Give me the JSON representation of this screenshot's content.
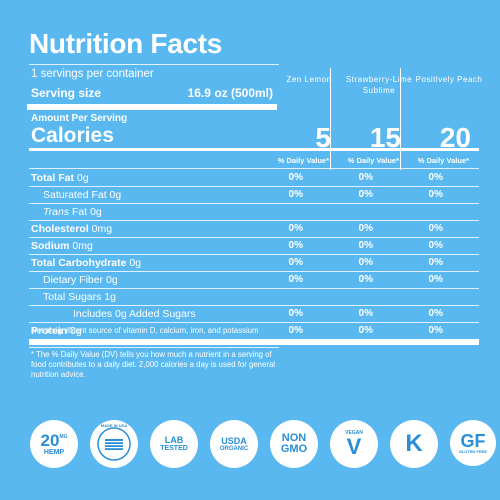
{
  "title": "Nutrition Facts",
  "servings_per_container": "1 servings per container",
  "serving_size_label": "Serving size",
  "serving_size_value": "16.9 oz (500ml)",
  "amount_per_serving": "Amount Per Serving",
  "calories_label": "Calories",
  "flavors": [
    {
      "name": "Zen Lemon",
      "calories": "5"
    },
    {
      "name": "Strawberry-Lime Sublime",
      "calories": "15"
    },
    {
      "name": "Positively Peach",
      "calories": "20"
    }
  ],
  "dv_header": "% Daily Value*",
  "rows": [
    {
      "label_bold": "Total Fat",
      "label": " 0g",
      "indent": 0,
      "values": [
        "0%",
        "0%",
        "0%"
      ]
    },
    {
      "label_bold": "",
      "label": "Saturated Fat 0g",
      "indent": 1,
      "values": [
        "0%",
        "0%",
        "0%"
      ]
    },
    {
      "label_bold": "",
      "label_italic": "Trans",
      "label": " Fat 0g",
      "indent": 1,
      "values": [
        "",
        "",
        ""
      ]
    },
    {
      "label_bold": "Cholesterol",
      "label": " 0mg",
      "indent": 0,
      "values": [
        "0%",
        "0%",
        "0%"
      ]
    },
    {
      "label_bold": "Sodium",
      "label": " 0mg",
      "indent": 0,
      "values": [
        "0%",
        "0%",
        "0%"
      ]
    },
    {
      "label_bold": "Total Carbohydrate",
      "label": " 0g",
      "indent": 0,
      "values": [
        "0%",
        "0%",
        "0%"
      ]
    },
    {
      "label_bold": "",
      "label": "Dietary Fiber 0g",
      "indent": 1,
      "values": [
        "0%",
        "0%",
        "0%"
      ]
    },
    {
      "label_bold": "",
      "label": "Total Sugars 1g",
      "indent": 1,
      "values": [
        "",
        "",
        ""
      ]
    },
    {
      "label_bold": "",
      "label": "Includes 0g Added Sugars",
      "indent": 2,
      "values": [
        "0%",
        "0%",
        "0%"
      ]
    },
    {
      "label_bold": "Protein",
      "label": " 0g",
      "indent": 0,
      "values": [
        "0%",
        "0%",
        "0%"
      ]
    }
  ],
  "footnote_1": "Not a significant source of vitamin D, calcium, iron, and potassium",
  "footnote_2": "* The % Daily Value (DV) tells you how much a nutrient in a serving of food contributes to a daily diet. 2,000 calories a day is used for general nutrition advice.",
  "badges": {
    "hemp_amount": "20",
    "hemp_unit": "MG",
    "hemp_label": "HEMP",
    "usa_label": "MADE IN USA",
    "lab_line1": "LAB",
    "lab_line2": "TESTED",
    "usda_line1": "USDA",
    "usda_line2": "ORGANIC",
    "non_line1": "NON",
    "non_line2": "GMO",
    "vegan_small": "VEGAN",
    "vegan_letter": "V",
    "kosher_letter": "K",
    "gf_letter": "GF",
    "gf_small": "GLUTEN FREE"
  },
  "colors": {
    "background": "#59b8f0",
    "badge_text": "#2a8fd6"
  }
}
